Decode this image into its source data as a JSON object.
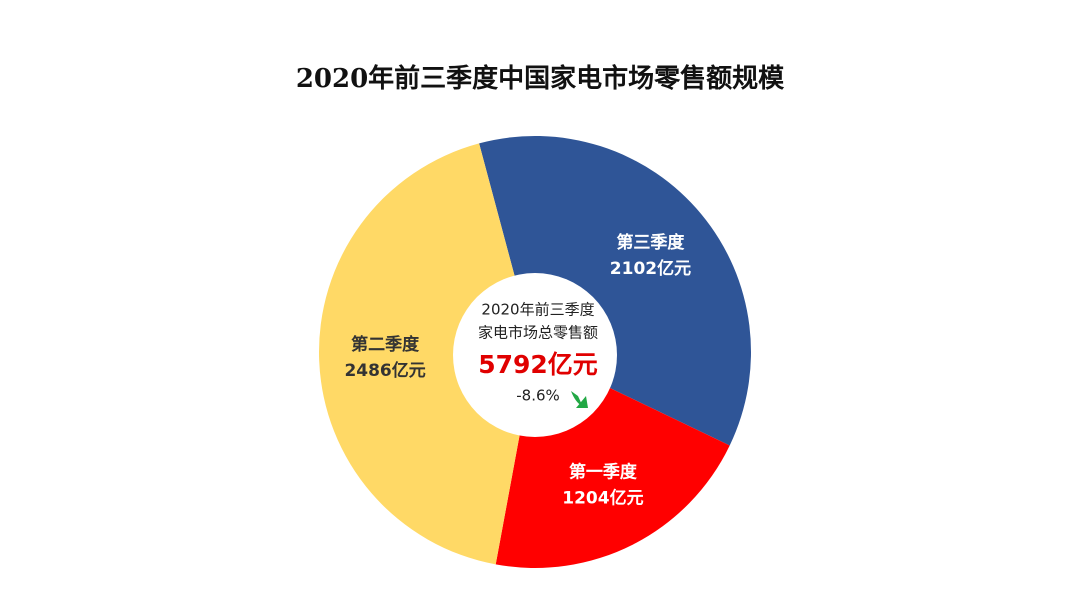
{
  "chart_data": {
    "type": "donut",
    "title": "2020年前三季度中国家电市场零售额规模",
    "categories": [
      "第三季度",
      "第一季度",
      "第二季度"
    ],
    "values": [
      2102,
      1204,
      2486
    ],
    "value_labels": [
      "2102亿元",
      "1204亿元",
      "2486亿元"
    ],
    "colors": [
      "#2f5597",
      "#ff0000",
      "#ffd966"
    ],
    "center": {
      "lines": [
        "2020年前三季度",
        "家电市场总零售额"
      ],
      "total": "5792亿元",
      "change": "-8.6%"
    }
  }
}
